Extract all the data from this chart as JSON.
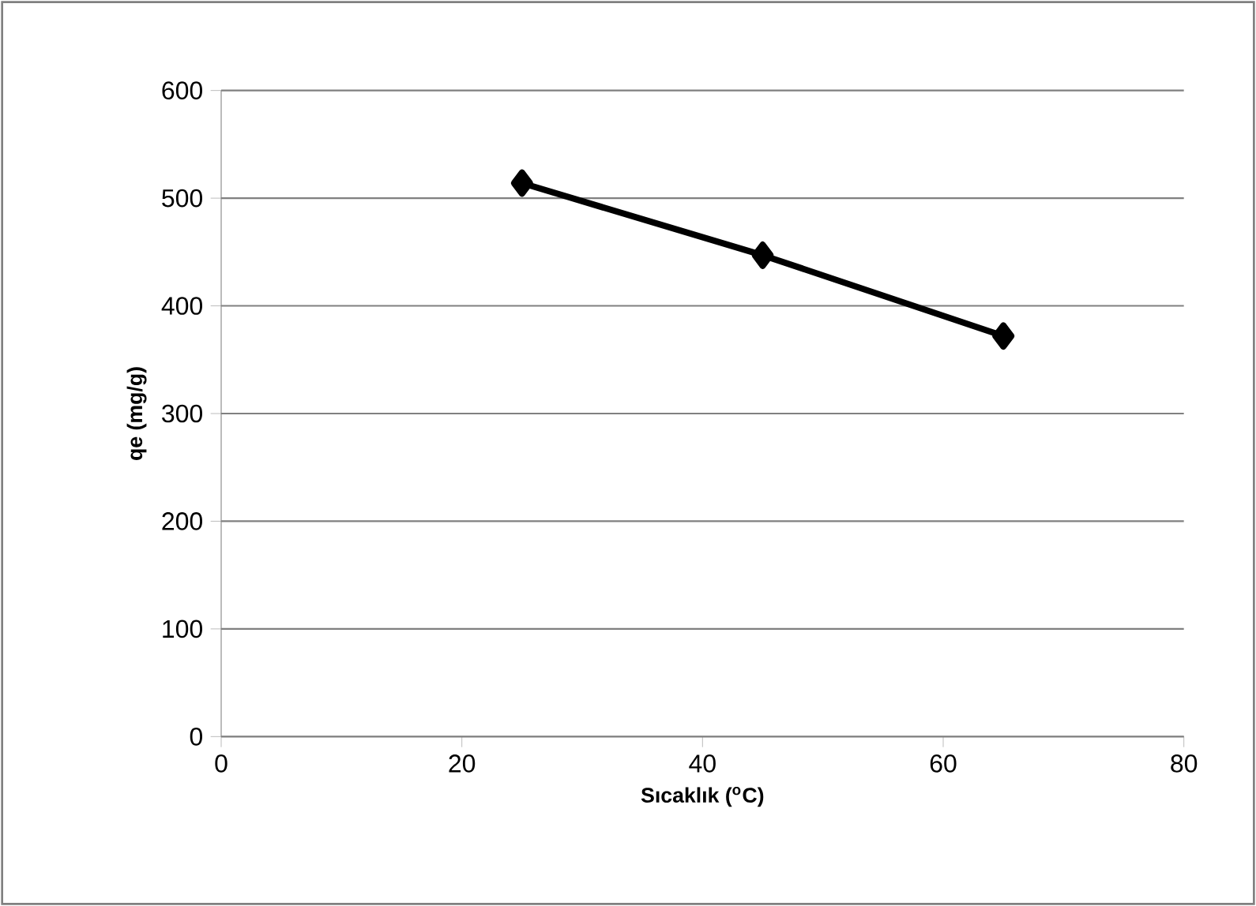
{
  "chart_data": {
    "type": "line",
    "xlabel": "Sıcaklık ($^{o}$C)",
    "ylabel": "qe (mg/g)",
    "x": [
      25,
      45,
      65
    ],
    "series": [
      {
        "color": "#000000",
        "values": [
          514,
          447,
          372
        ]
      }
    ],
    "xlim": [
      0,
      80
    ],
    "xticks": [
      0,
      20,
      40,
      60,
      80
    ],
    "ylim": [
      0,
      600
    ],
    "yticks": [
      0,
      100,
      200,
      300,
      400,
      500,
      600
    ],
    "grid": "y",
    "marker": "diamond",
    "line_style": "solid"
  }
}
